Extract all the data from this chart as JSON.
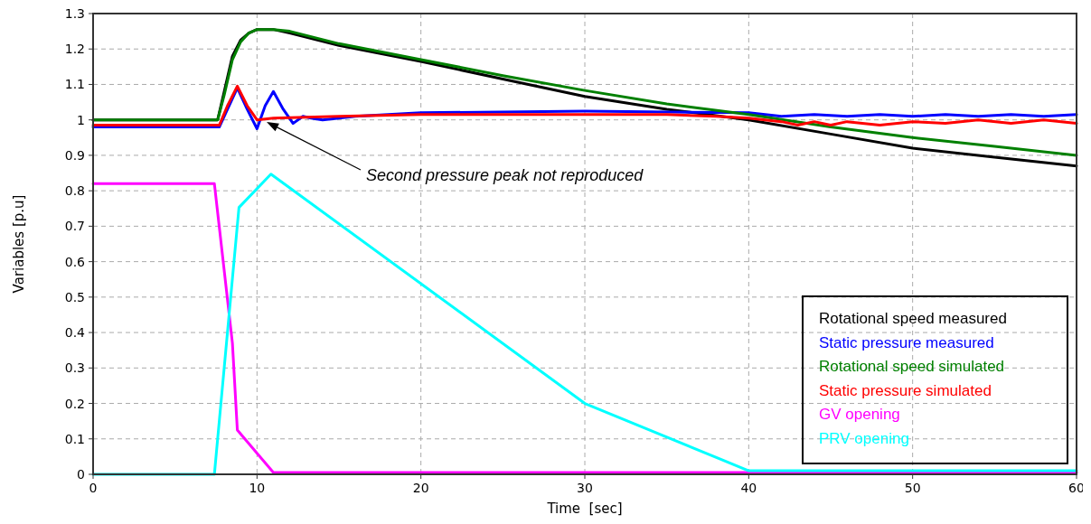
{
  "chart_data": {
    "type": "line",
    "xlabel": "Time  [sec]",
    "ylabel": "Variables [p.u]",
    "xlim": [
      0,
      60
    ],
    "xticks": [
      0,
      10,
      20,
      30,
      40,
      50,
      60
    ],
    "ylim": [
      0,
      1.3
    ],
    "yticks": [
      0,
      0.1,
      0.2,
      0.3,
      0.4,
      0.5,
      0.6,
      0.7,
      0.8,
      0.9,
      1,
      1.1,
      1.2,
      1.3
    ],
    "grid": true,
    "legend": "bottom right",
    "line_style": "solid",
    "marker": "none",
    "annotations": [
      "Second pressure peak not reproduced"
    ],
    "series": [
      {
        "name": "Rotational speed measured",
        "color": "#000000",
        "x": [
          0,
          7.6,
          8,
          8.5,
          9,
          9.5,
          10,
          11,
          12,
          15,
          20,
          25,
          30,
          35,
          40,
          45,
          50,
          55,
          60
        ],
        "values": [
          1.0,
          1.0,
          1.08,
          1.18,
          1.225,
          1.245,
          1.255,
          1.255,
          1.245,
          1.21,
          1.165,
          1.115,
          1.066,
          1.03,
          1.0,
          0.96,
          0.92,
          0.895,
          0.87
        ]
      },
      {
        "name": "Static pressure measured",
        "color": "#0000ff",
        "x": [
          0,
          7.7,
          8.2,
          8.8,
          9.4,
          10,
          10.5,
          11,
          11.6,
          12.2,
          12.8,
          13.3,
          14,
          16,
          20,
          30,
          40,
          42,
          44,
          46,
          48,
          50,
          52,
          54,
          56,
          58,
          60
        ],
        "values": [
          0.98,
          0.98,
          1.03,
          1.09,
          1.03,
          0.975,
          1.04,
          1.08,
          1.03,
          0.99,
          1.01,
          1.005,
          1.0,
          1.01,
          1.02,
          1.025,
          1.02,
          1.01,
          1.015,
          1.01,
          1.015,
          1.01,
          1.015,
          1.01,
          1.015,
          1.01,
          1.015
        ]
      },
      {
        "name": "Rotational speed simulated",
        "color": "#008000",
        "x": [
          0,
          7.6,
          8,
          8.5,
          9,
          9.5,
          10,
          11,
          12,
          15,
          20,
          25,
          30,
          35,
          40,
          45,
          50,
          55,
          60
        ],
        "values": [
          1.0,
          1.0,
          1.07,
          1.17,
          1.22,
          1.245,
          1.255,
          1.255,
          1.25,
          1.215,
          1.17,
          1.125,
          1.083,
          1.045,
          1.015,
          0.98,
          0.95,
          0.925,
          0.9
        ]
      },
      {
        "name": "Static pressure simulated",
        "color": "#ff0000",
        "x": [
          0,
          7.7,
          8.2,
          8.8,
          9.4,
          10,
          11,
          15,
          20,
          30,
          35,
          38,
          40,
          42,
          43,
          44,
          45,
          46,
          48,
          50,
          52,
          54,
          56,
          58,
          60
        ],
        "values": [
          0.985,
          0.985,
          1.04,
          1.095,
          1.04,
          1.0,
          1.005,
          1.01,
          1.015,
          1.015,
          1.015,
          1.01,
          1.005,
          0.995,
          0.985,
          0.995,
          0.985,
          0.995,
          0.985,
          0.995,
          0.99,
          1.0,
          0.99,
          1.0,
          0.99
        ]
      },
      {
        "name": "GV opening",
        "color": "#ff00ff",
        "x": [
          0,
          7.4,
          8.5,
          8.8,
          11,
          60
        ],
        "values": [
          0.82,
          0.82,
          0.37,
          0.125,
          0.005,
          0.005
        ]
      },
      {
        "name": "PRV opening",
        "color": "#00ffff",
        "x": [
          0,
          7.4,
          8.9,
          10.85,
          30,
          40,
          60
        ],
        "values": [
          0,
          0,
          0.753,
          0.847,
          0.2,
          0.01,
          0.01
        ]
      }
    ]
  }
}
